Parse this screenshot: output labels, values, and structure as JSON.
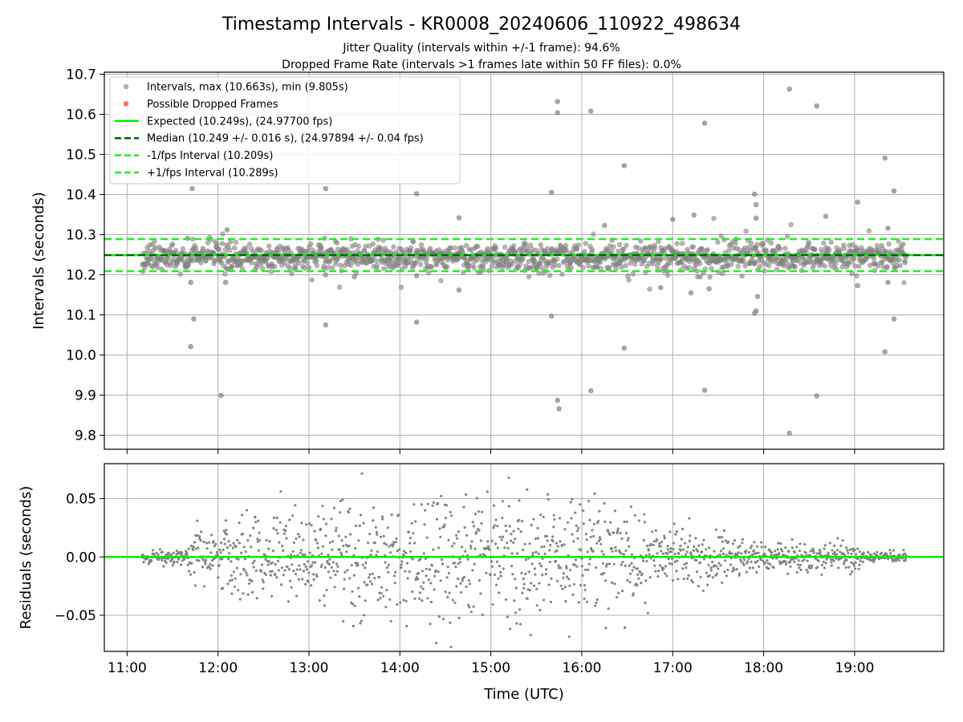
{
  "title": "Timestamp Intervals - KR0008_20240606_110922_498634",
  "subtitle_1": "Jitter Quality (intervals within +/-1 frame): 94.6%",
  "subtitle_2": "Dropped Frame Rate (intervals >1 frames late within 50 FF files): 0.0%",
  "colors": {
    "points": "#808080",
    "dropped": "#ff4d4d",
    "expected": "#00ee00",
    "median": "#006400",
    "band": "#22ee22",
    "grid": "#b0b0b0"
  },
  "chart_data": [
    {
      "type": "scatter",
      "panel": "top",
      "ylabel": "Intervals (seconds)",
      "ylim": [
        9.765,
        10.705
      ],
      "yticks": [
        "9.8",
        "9.9",
        "10.0",
        "10.1",
        "10.2",
        "10.3",
        "10.4",
        "10.5",
        "10.6",
        "10.7"
      ],
      "ytick_values": [
        9.8,
        9.9,
        10.0,
        10.1,
        10.2,
        10.3,
        10.4,
        10.5,
        10.6,
        10.7
      ],
      "xlim_hours": [
        10.75,
        19.98
      ],
      "grid": true,
      "legend_position": "top-left",
      "reference_lines": {
        "expected": 10.249,
        "median": 10.249,
        "minus_1_fps": 10.209,
        "plus_1_fps": 10.289
      },
      "legend": [
        {
          "label": "Intervals, max (10.663s), min (9.805s)",
          "kind": "dot-gray"
        },
        {
          "label": "Possible Dropped Frames",
          "kind": "dot-red"
        },
        {
          "label": "Expected (10.249s), (24.97700 fps)",
          "kind": "line-expected"
        },
        {
          "label": "Median (10.249 +/- 0.016 s), (24.97894 +/- 0.04 fps)",
          "kind": "dash-median"
        },
        {
          "label": "-1/fps Interval (10.209s)",
          "kind": "dash-band"
        },
        {
          "label": "+1/fps Interval (10.289s)",
          "kind": "dash-band"
        }
      ],
      "core_band": {
        "x_start": "11:10",
        "x_end": "19:34",
        "center": 10.245,
        "spread": 0.016
      },
      "outliers": [
        {
          "x": "11:43",
          "y": 10.415
        },
        {
          "x": "11:42",
          "y": 10.181
        },
        {
          "x": "11:44",
          "y": 10.09
        },
        {
          "x": "11:42",
          "y": 10.021
        },
        {
          "x": "12:02",
          "y": 9.899
        },
        {
          "x": "12:06",
          "y": 10.312
        },
        {
          "x": "12:05",
          "y": 10.181
        },
        {
          "x": "11:40",
          "y": 10.291
        },
        {
          "x": "13:11",
          "y": 10.415
        },
        {
          "x": "13:11",
          "y": 10.075
        },
        {
          "x": "13:11",
          "y": 10.2
        },
        {
          "x": "13:30",
          "y": 10.195
        },
        {
          "x": "14:11",
          "y": 10.402
        },
        {
          "x": "14:11",
          "y": 10.082
        },
        {
          "x": "14:11",
          "y": 10.198
        },
        {
          "x": "14:39",
          "y": 10.342
        },
        {
          "x": "14:39",
          "y": 10.162
        },
        {
          "x": "15:40",
          "y": 10.405
        },
        {
          "x": "15:40",
          "y": 10.097
        },
        {
          "x": "15:44",
          "y": 10.632
        },
        {
          "x": "15:44",
          "y": 10.604
        },
        {
          "x": "15:44",
          "y": 9.887
        },
        {
          "x": "15:45",
          "y": 9.866
        },
        {
          "x": "16:06",
          "y": 10.608
        },
        {
          "x": "16:06",
          "y": 9.911
        },
        {
          "x": "16:28",
          "y": 10.472
        },
        {
          "x": "16:28",
          "y": 10.017
        },
        {
          "x": "16:15",
          "y": 10.323
        },
        {
          "x": "17:21",
          "y": 10.578
        },
        {
          "x": "17:21",
          "y": 9.912
        },
        {
          "x": "17:14",
          "y": 10.349
        },
        {
          "x": "17:00",
          "y": 10.338
        },
        {
          "x": "17:54",
          "y": 10.401
        },
        {
          "x": "17:55",
          "y": 10.375
        },
        {
          "x": "17:54",
          "y": 10.104
        },
        {
          "x": "17:55",
          "y": 10.11
        },
        {
          "x": "17:56",
          "y": 10.146
        },
        {
          "x": "17:55",
          "y": 10.341
        },
        {
          "x": "18:17",
          "y": 10.663
        },
        {
          "x": "18:17",
          "y": 9.805
        },
        {
          "x": "18:35",
          "y": 10.621
        },
        {
          "x": "18:35",
          "y": 9.898
        },
        {
          "x": "18:41",
          "y": 10.346
        },
        {
          "x": "19:02",
          "y": 10.381
        },
        {
          "x": "19:02",
          "y": 10.173
        },
        {
          "x": "19:20",
          "y": 10.491
        },
        {
          "x": "19:20",
          "y": 10.008
        },
        {
          "x": "19:26",
          "y": 10.409
        },
        {
          "x": "19:26",
          "y": 10.09
        },
        {
          "x": "19:22",
          "y": 10.181
        },
        {
          "x": "19:22",
          "y": 10.316
        },
        {
          "x": "17:12",
          "y": 10.155
        },
        {
          "x": "17:24",
          "y": 10.165
        },
        {
          "x": "16:52",
          "y": 10.168
        }
      ]
    },
    {
      "type": "scatter",
      "panel": "bottom",
      "ylabel": "Residuals (seconds)",
      "xlabel": "Time (UTC)",
      "ylim": [
        -0.081,
        0.08
      ],
      "yticks": [
        "−0.05",
        "0.00",
        "0.05"
      ],
      "ytick_values": [
        -0.05,
        0.0,
        0.05
      ],
      "xticks": [
        "11:00",
        "12:00",
        "13:00",
        "14:00",
        "15:00",
        "16:00",
        "17:00",
        "18:00",
        "19:00"
      ],
      "xtick_hours": [
        11,
        12,
        13,
        14,
        15,
        16,
        17,
        18,
        19
      ],
      "xlim_hours": [
        10.75,
        19.98
      ],
      "grid": true,
      "reference_line": 0.0,
      "residual_band": {
        "x_start": "11:10",
        "x_end": "19:34",
        "spread_min": 0.006,
        "spread_max": 0.028
      }
    }
  ]
}
